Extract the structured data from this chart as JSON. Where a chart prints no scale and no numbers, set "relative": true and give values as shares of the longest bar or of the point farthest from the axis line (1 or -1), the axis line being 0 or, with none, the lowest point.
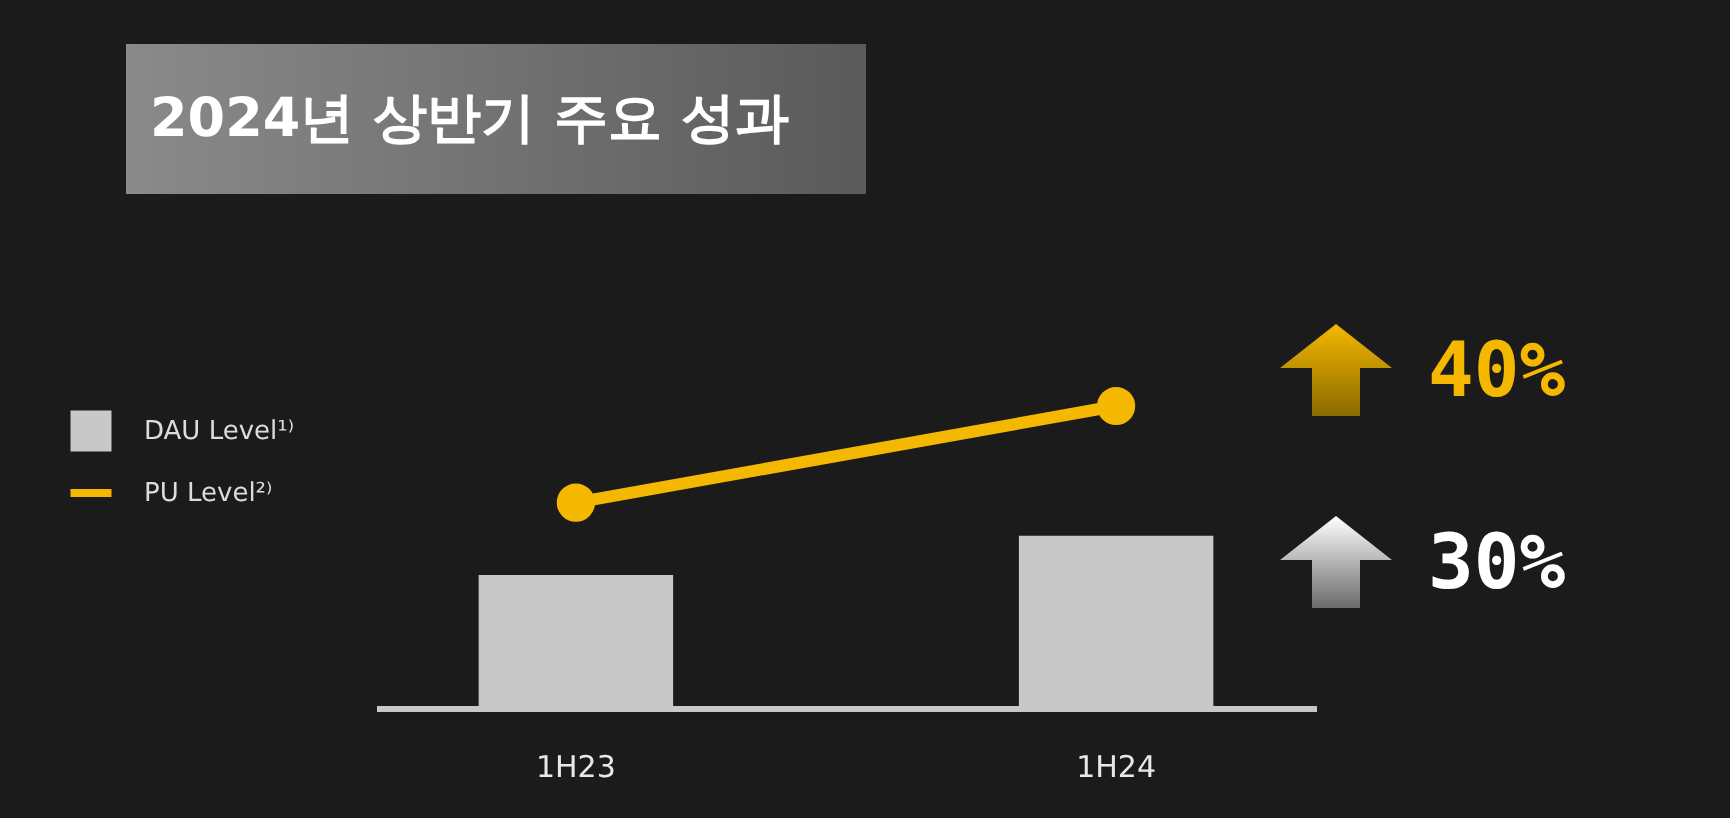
{
  "chart_data": {
    "type": "bar",
    "title": "2024년 상반기 주요 성과",
    "relative": true,
    "categories": [
      "1H23",
      "1H24"
    ],
    "series": [
      {
        "name": "DAU Level¹⁾",
        "color": "#c8c8c8",
        "values": [
          0.44,
          0.57
        ]
      },
      {
        "name": "PU Level²⁾",
        "type": "line",
        "color": "#f5b800",
        "values": [
          0.68,
          1
        ]
      }
    ],
    "marker": "circle",
    "legend": "left",
    "grid": false,
    "annotations": [
      "40%",
      "30%"
    ]
  }
}
